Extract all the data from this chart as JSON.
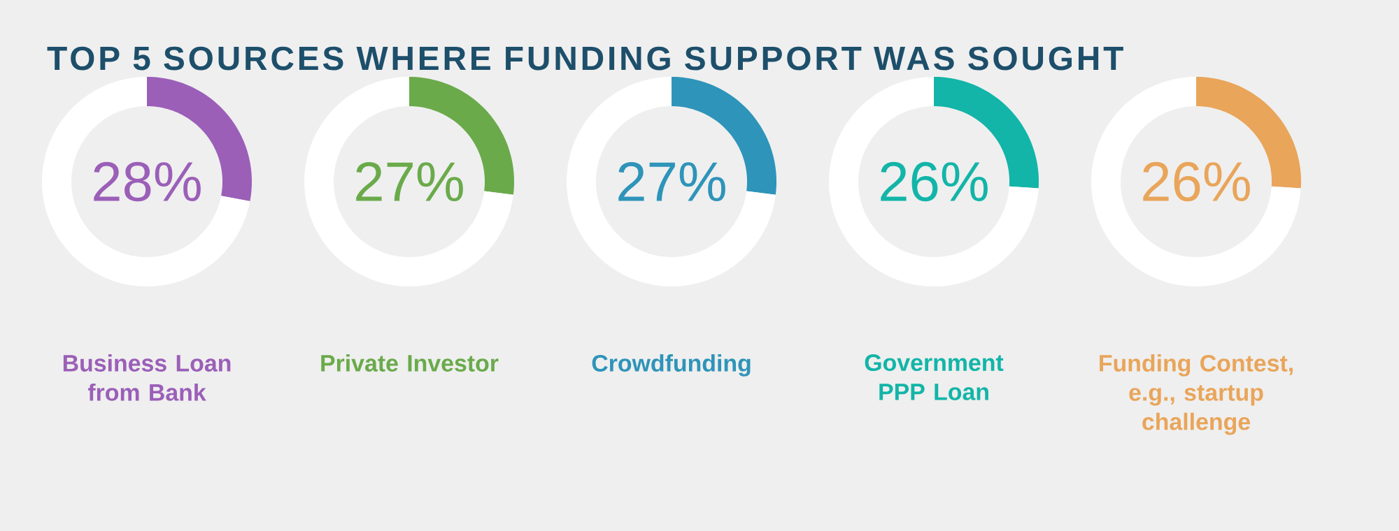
{
  "chart_data": [
    {
      "type": "donut",
      "title": "TOP 5 SOURCES WHERE FUNDING SUPPORT WAS SOUGHT",
      "xlabel": "Business Loan from Bank",
      "categories": [
        null,
        null
      ],
      "values": [
        28,
        72
      ],
      "colors": [
        "#9b5fb8",
        "#ffffff"
      ],
      "value_labels": [
        "28%",
        null
      ]
    },
    {
      "type": "donut",
      "xlabel": "Private Investor",
      "categories": [
        null,
        null
      ],
      "values": [
        27,
        73
      ],
      "colors": [
        "#6aaa4b",
        "#ffffff"
      ],
      "value_labels": [
        "27%",
        null
      ]
    },
    {
      "type": "donut",
      "xlabel": "Crowdfunding",
      "categories": [
        null,
        null
      ],
      "values": [
        27,
        73
      ],
      "colors": [
        "#2e94b9",
        "#ffffff"
      ],
      "value_labels": [
        "27%",
        null
      ]
    },
    {
      "type": "donut",
      "xlabel": "Government PPP Loan",
      "categories": [
        null,
        null
      ],
      "values": [
        26,
        74
      ],
      "colors": [
        "#12b5a8",
        "#ffffff"
      ],
      "value_labels": [
        "26%",
        null
      ]
    },
    {
      "type": "donut",
      "xlabel": "Funding Contest, e.g., startup challenge",
      "categories": [
        null,
        null
      ],
      "values": [
        26,
        74
      ],
      "colors": [
        "#e9a55a",
        "#ffffff"
      ],
      "value_labels": [
        "26%",
        null
      ]
    }
  ]
}
